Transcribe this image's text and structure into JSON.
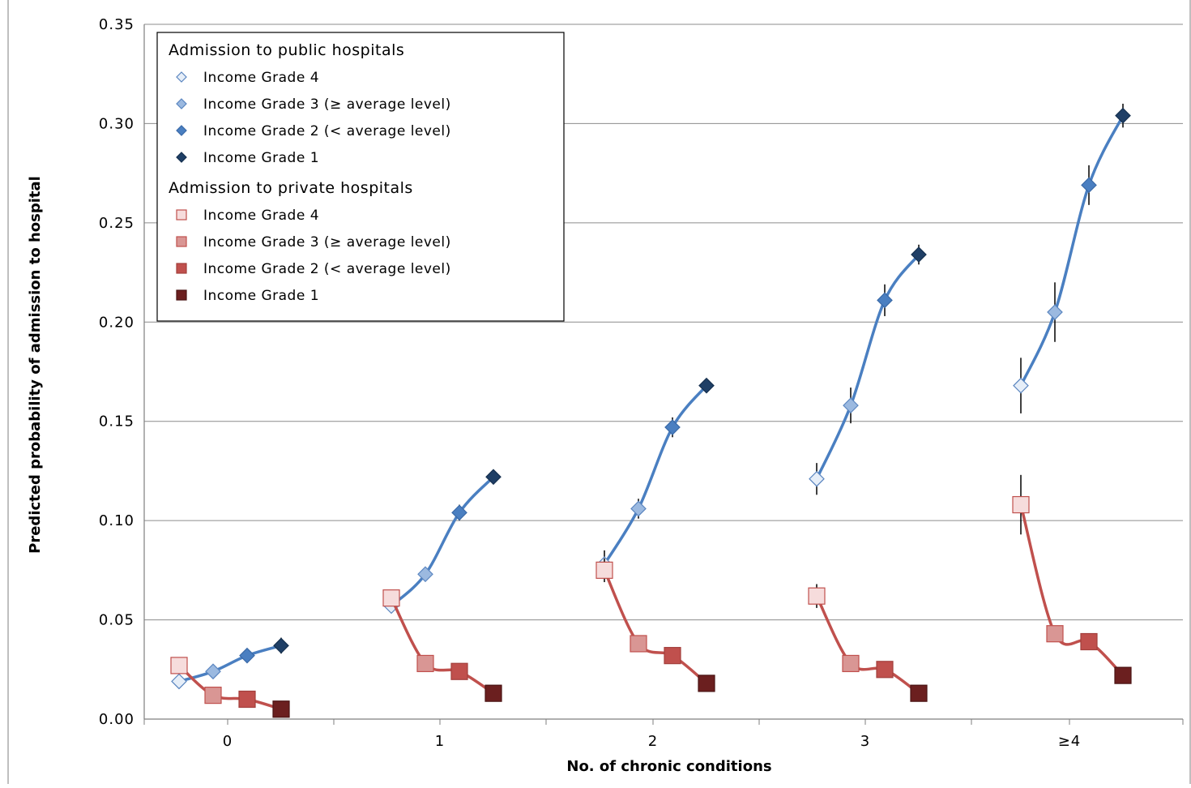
{
  "chart_data": {
    "type": "line",
    "title": "",
    "xlabel": "No. of chronic conditions",
    "ylabel": "Predicted probability of admission to hospital",
    "categories": [
      "0",
      "1",
      "2",
      "3",
      "≥4"
    ],
    "yticks": [
      "0.00",
      "0.05",
      "0.10",
      "0.15",
      "0.20",
      "0.25",
      "0.30",
      "0.35"
    ],
    "ylim": [
      0,
      0.35
    ],
    "grid": true,
    "legend_position": "top-left",
    "groups": [
      {
        "label": "Admission to public hospitals",
        "color": "#4a7fc1",
        "series": [
          {
            "name": "Income Grade 4",
            "fill": "#e6eef8",
            "stroke": "#5b86c0",
            "values": [
              0.019,
              0.057,
              0.078,
              0.121,
              0.168
            ],
            "ci": [
              null,
              null,
              0.007,
              0.008,
              0.014
            ]
          },
          {
            "name": "Income Grade 3 (≥ average level)",
            "fill": "#9bb9e0",
            "stroke": "#5b86c0",
            "values": [
              0.024,
              0.073,
              0.106,
              0.158,
              0.205
            ],
            "ci": [
              null,
              null,
              0.005,
              0.009,
              0.015
            ]
          },
          {
            "name": "Income Grade 2 (< average level)",
            "fill": "#4a7fc1",
            "stroke": "#3a6aa8",
            "values": [
              0.032,
              0.104,
              0.147,
              0.211,
              0.269
            ],
            "ci": [
              null,
              0.004,
              0.005,
              0.008,
              0.01
            ]
          },
          {
            "name": "Income Grade 1",
            "fill": "#1f3f66",
            "stroke": "#15304f",
            "values": [
              0.037,
              0.122,
              0.168,
              0.234,
              0.304
            ],
            "ci": [
              0.004,
              null,
              null,
              0.005,
              0.006
            ]
          }
        ]
      },
      {
        "label": "Admission to private hospitals",
        "color": "#c0504d",
        "series": [
          {
            "name": "Income Grade 4",
            "fill": "#f6dcdc",
            "stroke": "#c0504d",
            "values": [
              0.027,
              0.061,
              0.075,
              0.062,
              0.108
            ],
            "ci": [
              null,
              null,
              0.006,
              0.006,
              0.015
            ]
          },
          {
            "name": "Income Grade 3 (≥ average level)",
            "fill": "#d99694",
            "stroke": "#c0504d",
            "values": [
              0.012,
              0.028,
              0.038,
              0.028,
              0.043
            ],
            "ci": [
              null,
              null,
              null,
              null,
              0.004
            ]
          },
          {
            "name": "Income Grade 2 (< average level)",
            "fill": "#c0504d",
            "stroke": "#a33f3c",
            "values": [
              0.01,
              0.024,
              0.032,
              0.025,
              0.039
            ],
            "ci": [
              null,
              null,
              null,
              null,
              null
            ]
          },
          {
            "name": "Income Grade 1",
            "fill": "#6b1f1f",
            "stroke": "#4a1414",
            "values": [
              0.005,
              0.013,
              0.018,
              0.013,
              0.022
            ],
            "ci": [
              null,
              null,
              null,
              null,
              null
            ]
          }
        ]
      }
    ]
  }
}
